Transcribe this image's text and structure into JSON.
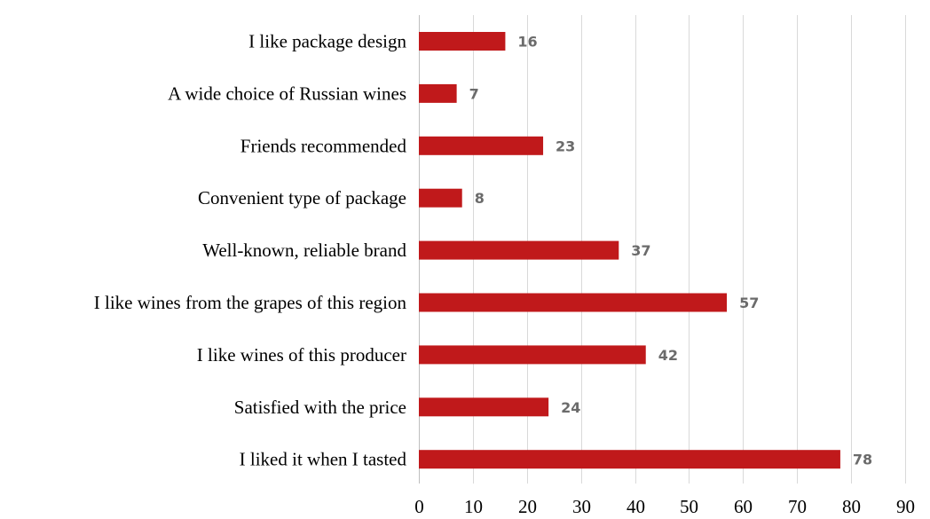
{
  "chart_data": {
    "type": "bar",
    "orientation": "horizontal",
    "categories": [
      "I like package design",
      "A wide choice of Russian wines",
      "Friends recommended",
      "Convenient type of package",
      "Well-known, reliable brand",
      "I like wines from the grapes of this region",
      "I like wines of this producer",
      "Satisfied with the price",
      "I liked it when I tasted"
    ],
    "values": [
      16,
      7,
      23,
      8,
      37,
      57,
      42,
      24,
      78
    ],
    "value_labels": [
      "16",
      "7",
      "23",
      "8",
      "37",
      "57",
      "42",
      "24",
      "78"
    ],
    "title": "",
    "xlabel": "",
    "ylabel": "",
    "xlim": [
      0,
      90
    ],
    "x_ticks": [
      0,
      10,
      20,
      30,
      40,
      50,
      60,
      70,
      80,
      90
    ],
    "x_tick_labels": [
      "0",
      "10",
      "20",
      "30",
      "40",
      "50",
      "60",
      "70",
      "80",
      "90"
    ],
    "grid": true,
    "legend": "none",
    "bar_color": "#c0191b",
    "value_label_color": "#6b6b6b",
    "grid_color": "#d9d9d9"
  }
}
